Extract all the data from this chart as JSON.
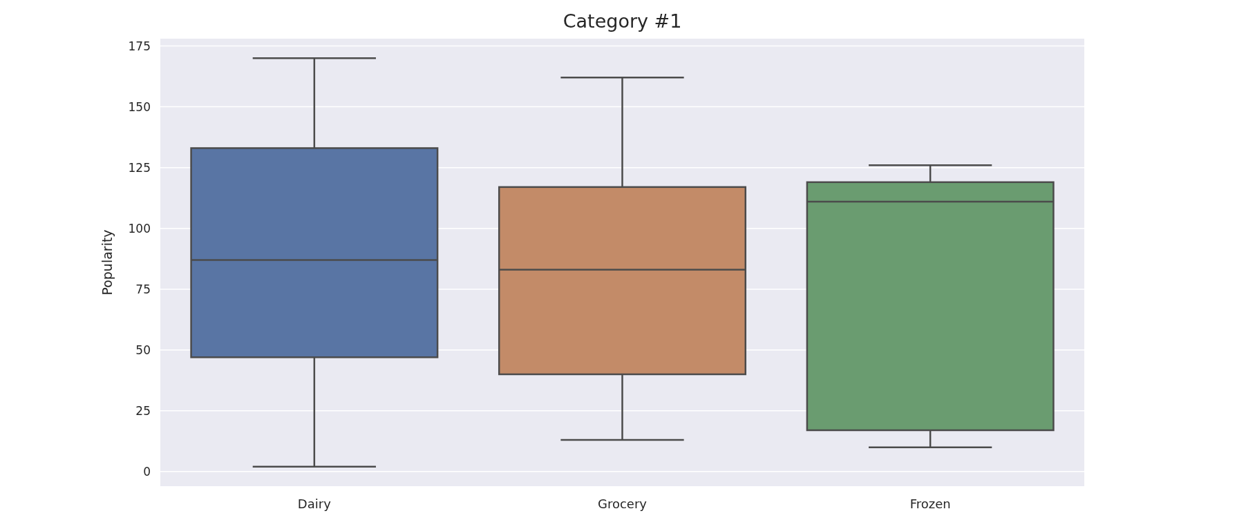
{
  "chart_data": {
    "type": "box",
    "title": "Category #1",
    "ylabel": "Popularity",
    "categories": [
      "Dairy",
      "Grocery",
      "Frozen"
    ],
    "colors": [
      "#5975a4",
      "#c38b68",
      "#6a9c70"
    ],
    "boxes": [
      {
        "low": 2,
        "q1": 47,
        "median": 87,
        "q3": 133,
        "high": 170
      },
      {
        "low": 13,
        "q1": 40,
        "median": 83,
        "q3": 117,
        "high": 162
      },
      {
        "low": 10,
        "q1": 17,
        "median": 111,
        "q3": 119,
        "high": 126
      }
    ],
    "ylim": [
      -6,
      178
    ],
    "yticks": [
      0,
      25,
      50,
      75,
      100,
      125,
      150,
      175
    ],
    "grid": "y"
  }
}
